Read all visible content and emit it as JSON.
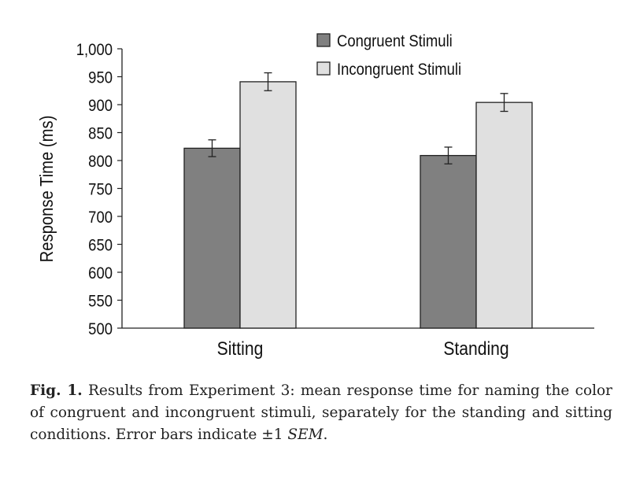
{
  "chart_data": {
    "type": "bar",
    "title": "",
    "xlabel": "",
    "ylabel": "Response Time (ms)",
    "ylim": [
      500,
      1000
    ],
    "yticks": [
      500,
      550,
      600,
      650,
      700,
      750,
      800,
      850,
      900,
      950,
      1000
    ],
    "ytick_labels": [
      "500",
      "550",
      "600",
      "650",
      "700",
      "750",
      "800",
      "850",
      "900",
      "950",
      "1,000"
    ],
    "categories": [
      "Sitting",
      "Standing"
    ],
    "series": [
      {
        "name": "Congruent Stimuli",
        "color": "#808080",
        "values": [
          822,
          809
        ],
        "errors": [
          15,
          15
        ]
      },
      {
        "name": "Incongruent Stimuli",
        "color": "#e0e0e0",
        "values": [
          941,
          904
        ],
        "errors": [
          16,
          16
        ]
      }
    ],
    "legend_position": "top-right",
    "grid": false
  },
  "caption": {
    "label": "Fig. 1.",
    "text": "Results from Experiment 3: mean response time for naming the color of congruent and incongruent stimuli, separately for the standing and sitting conditions. Error bars indicate ±1",
    "sem": "SEM",
    "end": "."
  }
}
